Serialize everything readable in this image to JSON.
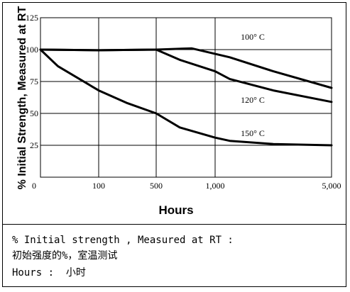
{
  "chart_data": {
    "type": "line",
    "ylabel": "% Initial Strength, Measured at RT",
    "xlabel": "Hours",
    "x_ticks": [
      "0",
      "100",
      "500",
      "1,000",
      "5,000"
    ],
    "x_tick_values": [
      0,
      100,
      500,
      1000,
      5000
    ],
    "x_scale": "piecewise",
    "y_ticks": [
      "25",
      "50",
      "75",
      "100",
      "125"
    ],
    "y_tick_values": [
      25,
      50,
      75,
      100,
      125
    ],
    "ylim": [
      0,
      125
    ],
    "grid": true,
    "series": [
      {
        "name": "100° C",
        "x": [
          0,
          100,
          500,
          800,
          1500,
          3000,
          5000
        ],
        "y": [
          100,
          99.5,
          100,
          101,
          94,
          83,
          70
        ]
      },
      {
        "name": "120° C",
        "x": [
          0,
          100,
          500,
          700,
          1000,
          1500,
          3000,
          5000
        ],
        "y": [
          100,
          99.5,
          100,
          92,
          83,
          77,
          68,
          59
        ]
      },
      {
        "name": "150° C",
        "x": [
          0,
          30,
          100,
          300,
          500,
          700,
          1000,
          1500,
          3000,
          5000
        ],
        "y": [
          100,
          87,
          68,
          58,
          50,
          39,
          31,
          28.5,
          26,
          25
        ]
      }
    ]
  },
  "notes": {
    "line1": "% Initial strength , Measured at RT :",
    "line2": "初始强度的%，室温测试",
    "line3": "Hours :  小时"
  }
}
